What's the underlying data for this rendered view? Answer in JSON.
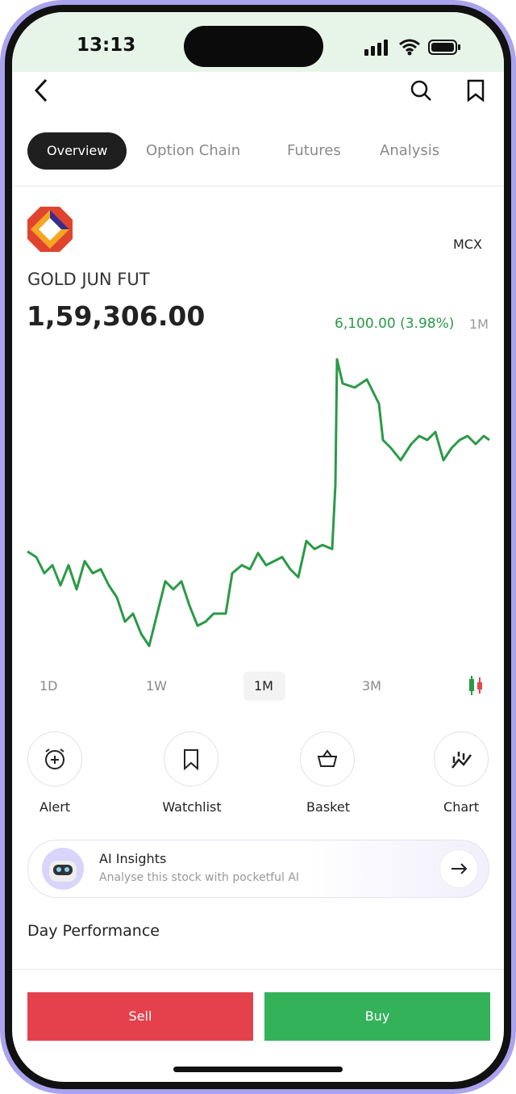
{
  "status_bar": {
    "time": "13:13"
  },
  "tabs": [
    "Overview",
    "Option Chain",
    "Futures",
    "Analysis"
  ],
  "instrument": {
    "exchange": "MCX",
    "name": "GOLD JUN FUT",
    "price": "1,59,306.00",
    "change": "6,100.00 (3.98%)",
    "change_period": "1M"
  },
  "ranges": [
    "1D",
    "1W",
    "1M",
    "3M"
  ],
  "actions": [
    "Alert",
    "Watchlist",
    "Basket",
    "Chart"
  ],
  "ai_card": {
    "title": "AI Insights",
    "subtitle": "Analyse this stock with pocketful AI"
  },
  "section": {
    "title": "Day Performance"
  },
  "buttons": {
    "sell": "Sell",
    "buy": "Buy"
  }
}
